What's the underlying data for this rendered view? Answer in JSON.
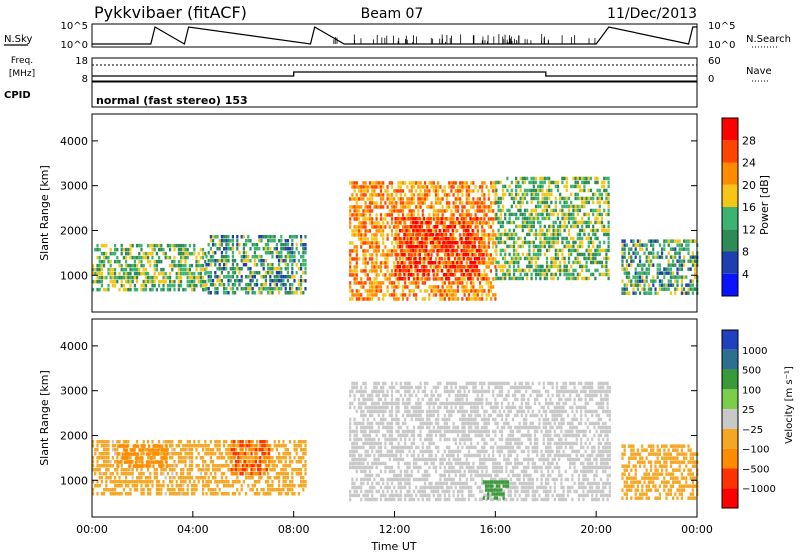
{
  "header": {
    "station": "Pykkvibaer (fitACF)",
    "beam": "Beam 07",
    "date": "11/Dec/2013"
  },
  "side_labels": {
    "nsky": "N.Sky",
    "nsearch": "N.Search",
    "freq_line1": "Freq.",
    "freq_line2": "[MHz]",
    "nave": "Nave",
    "cpid": "CPID",
    "cpid_value": "normal (fast stereo) 153"
  },
  "colors": {
    "power_scale": [
      "#0a14ff",
      "#1f3fb0",
      "#2e8b57",
      "#3cb371",
      "#f5c518",
      "#ff8c00",
      "#ff4500",
      "#ff0000"
    ],
    "velocity_scale": [
      "#2040c0",
      "#2e6e8e",
      "#3a9a3a",
      "#7ccd4a",
      "#c8c8c8",
      "#f5a623",
      "#ff8c00",
      "#ff3300",
      "#ff0000"
    ]
  },
  "chart_data": [
    {
      "type": "line",
      "title": "",
      "series": [
        {
          "name": "N.Sky",
          "x": [
            "00:00",
            "02:20",
            "02:30",
            "03:40",
            "03:50",
            "08:40",
            "08:50",
            "10:00",
            "16:00",
            "20:00",
            "20:30",
            "23:40",
            "23:50",
            "24:00"
          ],
          "y": [
            1,
            1,
            100000,
            1,
            100000,
            1,
            100000,
            1,
            1,
            1,
            100000,
            1,
            100000,
            100000
          ]
        }
      ],
      "ylabels_left": [
        "10^5",
        "10^0"
      ],
      "ylabels_right": [
        "10^5",
        "10^0"
      ],
      "ylim": [
        1,
        100000
      ],
      "log_scale": true
    },
    {
      "type": "line",
      "series": [
        {
          "name": "Freq",
          "x": [
            "00:00",
            "08:00",
            "08:00",
            "18:00",
            "18:00",
            "24:00"
          ],
          "y": [
            10,
            10,
            12,
            12,
            10,
            10
          ],
          "unit": "MHz"
        },
        {
          "name": "Nave",
          "x": [
            "00:00",
            "24:00"
          ],
          "y": [
            45,
            45
          ]
        }
      ],
      "yticks_left": [
        "18",
        "8"
      ],
      "yticks_right": [
        "60",
        "0"
      ],
      "ylim_left": [
        8,
        18
      ],
      "ylim_right": [
        0,
        60
      ]
    },
    {
      "type": "heatmap",
      "ylabel": "Slant Range [km]",
      "yticks": [
        "1000",
        "2000",
        "3000",
        "4000"
      ],
      "ylim": [
        180,
        4600
      ],
      "colorbar_label": "Power [dB]",
      "colorbar_ticks": [
        "4",
        "8",
        "12",
        "16",
        "20",
        "24",
        "28"
      ],
      "clim": [
        0,
        32
      ],
      "regions": [
        {
          "t0": 0.0,
          "t1": 4.5,
          "r0": 700,
          "r1": 1700,
          "value": 14
        },
        {
          "t0": 4.5,
          "t1": 8.5,
          "r0": 600,
          "r1": 1900,
          "value": 12
        },
        {
          "t0": 10.2,
          "t1": 16.0,
          "r0": 500,
          "r1": 3100,
          "value": 22
        },
        {
          "t0": 12.0,
          "t1": 15.5,
          "r0": 900,
          "r1": 2300,
          "value": 28
        },
        {
          "t0": 16.0,
          "t1": 20.5,
          "r0": 900,
          "r1": 3200,
          "value": 14
        },
        {
          "t0": 21.0,
          "t1": 24.0,
          "r0": 600,
          "r1": 1800,
          "value": 12
        }
      ]
    },
    {
      "type": "heatmap",
      "ylabel": "Slant Range [km]",
      "yticks": [
        "1000",
        "2000",
        "3000",
        "4000"
      ],
      "ylim": [
        180,
        4600
      ],
      "xlabel": "Time UT",
      "xticks": [
        "00:00",
        "04:00",
        "08:00",
        "12:00",
        "16:00",
        "20:00",
        "00:00"
      ],
      "colorbar_label": "Velocity [m s⁻¹]",
      "colorbar_ticks": [
        "1000",
        "500",
        "100",
        "25",
        "−25",
        "−100",
        "−500",
        "−1000"
      ],
      "regions": [
        {
          "t0": 0.0,
          "t1": 4.5,
          "r0": 700,
          "r1": 1900,
          "value": -20
        },
        {
          "t0": 1.0,
          "t1": 3.0,
          "r0": 1300,
          "r1": 1800,
          "value": -120
        },
        {
          "t0": 4.5,
          "t1": 8.5,
          "r0": 700,
          "r1": 1900,
          "value": -30
        },
        {
          "t0": 5.5,
          "t1": 7.0,
          "r0": 1100,
          "r1": 1900,
          "value": -200
        },
        {
          "t0": 10.2,
          "t1": 20.5,
          "r0": 600,
          "r1": 3200,
          "value": 0
        },
        {
          "t0": 15.5,
          "t1": 16.5,
          "r0": 600,
          "r1": 1000,
          "value": 80
        },
        {
          "t0": 21.0,
          "t1": 24.0,
          "r0": 600,
          "r1": 1800,
          "value": -30
        }
      ]
    }
  ]
}
